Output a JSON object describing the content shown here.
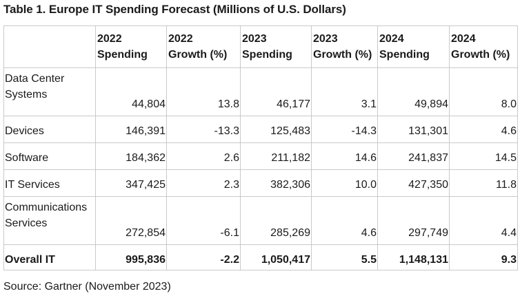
{
  "title": "Table 1. Europe IT Spending Forecast (Millions of U.S. Dollars)",
  "columns": [
    {
      "line1": "",
      "line2": ""
    },
    {
      "line1": "2022",
      "line2": "Spending"
    },
    {
      "line1": "2022",
      "line2": "Growth (%)"
    },
    {
      "line1": "2023",
      "line2": "Spending"
    },
    {
      "line1": "2023",
      "line2": "Growth (%)"
    },
    {
      "line1": "2024",
      "line2": "Spending"
    },
    {
      "line1": "2024",
      "line2": "Growth (%)"
    }
  ],
  "rows": [
    {
      "label": [
        "Data Center",
        "Systems"
      ],
      "cells": [
        "44,804",
        "13.8",
        "46,177",
        "3.1",
        "49,894",
        "8.0"
      ]
    },
    {
      "label": [
        "Devices"
      ],
      "cells": [
        "146,391",
        "-13.3",
        "125,483",
        "-14.3",
        "131,301",
        "4.6"
      ]
    },
    {
      "label": [
        "Software"
      ],
      "cells": [
        "184,362",
        "2.6",
        "211,182",
        "14.6",
        "241,837",
        "14.5"
      ]
    },
    {
      "label": [
        "IT Services"
      ],
      "cells": [
        "347,425",
        "2.3",
        "382,306",
        "10.0",
        "427,350",
        "11.8"
      ]
    },
    {
      "label": [
        "Communications",
        "Services"
      ],
      "cells": [
        "272,854",
        "-6.1",
        "285,269",
        "4.6",
        "297,749",
        "4.4"
      ]
    },
    {
      "label": [
        "Overall IT"
      ],
      "cells": [
        "995,836",
        "-2.2",
        "1,050,417",
        "5.5",
        "1,148,131",
        "9.3"
      ]
    }
  ],
  "source": "Source: Gartner (November 2023)"
}
